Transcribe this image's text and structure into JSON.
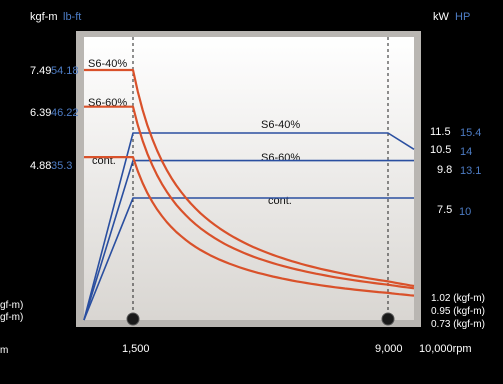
{
  "chart_data": {
    "type": "line",
    "units": {
      "torque_left": "kgf-m",
      "torque_left_alt": "lb-ft",
      "power_right": "kW",
      "power_right_alt": "HP",
      "x_axis_unit": "rpm"
    },
    "x_ticks": [
      "1,500",
      "9,000",
      "10,000rpm"
    ],
    "left_cut_labels": [
      "gf-m)",
      "gf-m)",
      "m"
    ],
    "torque_series": [
      {
        "name": "S6-40%",
        "kgfm": "7.49",
        "lbft": "54.18",
        "color": "#d9512a",
        "points": [
          [
            0,
            7.49
          ],
          [
            1500,
            7.49
          ],
          [
            10000,
            1.02
          ]
        ]
      },
      {
        "name": "S6-60%",
        "kgfm": "6.39",
        "lbft": "46.22",
        "color": "#d9512a",
        "points": [
          [
            0,
            6.39
          ],
          [
            1500,
            6.39
          ],
          [
            10000,
            0.95
          ]
        ]
      },
      {
        "name": "cont.",
        "kgfm": "4.88",
        "lbft": "35.3",
        "color": "#d9512a",
        "points": [
          [
            0,
            4.88
          ],
          [
            1500,
            4.88
          ],
          [
            10000,
            0.73
          ]
        ]
      }
    ],
    "torque_end_labels": [
      "1.02 (kgf-m)",
      "0.95 (kgf-m)",
      "0.73 (kgf-m)"
    ],
    "power_series": [
      {
        "name": "S6-40%",
        "kw": "11.5",
        "hp": "15.4",
        "kw_end": "10.5",
        "hp_end": "14",
        "color": "#2a4fa0",
        "points": [
          [
            0,
            0
          ],
          [
            1500,
            11.5
          ],
          [
            9000,
            11.5
          ],
          [
            10000,
            10.5
          ]
        ]
      },
      {
        "name": "S6-60%",
        "kw": "9.8",
        "hp": "13.1",
        "color": "#2a4fa0",
        "points": [
          [
            0,
            0
          ],
          [
            1500,
            9.8
          ],
          [
            10000,
            9.8
          ]
        ]
      },
      {
        "name": "cont.",
        "kw": "7.5",
        "hp": "10",
        "color": "#2a4fa0",
        "points": [
          [
            0,
            0
          ],
          [
            1500,
            7.5
          ],
          [
            10000,
            7.5
          ]
        ]
      }
    ],
    "x_range": [
      0,
      10000
    ],
    "markers_rpm": [
      1500,
      9000
    ],
    "grid": false
  }
}
